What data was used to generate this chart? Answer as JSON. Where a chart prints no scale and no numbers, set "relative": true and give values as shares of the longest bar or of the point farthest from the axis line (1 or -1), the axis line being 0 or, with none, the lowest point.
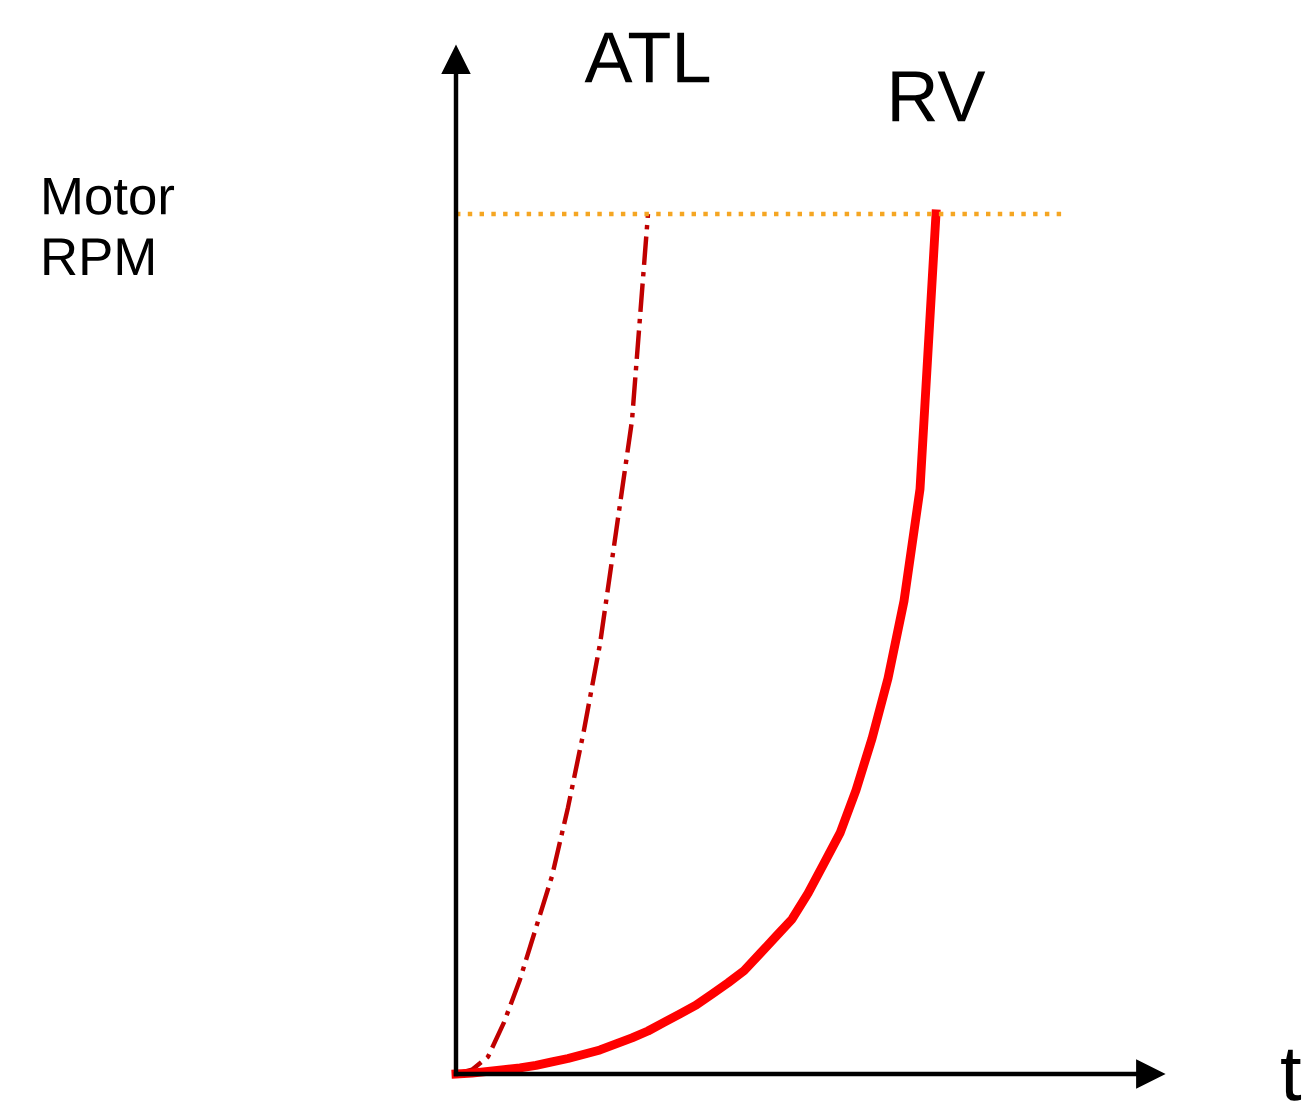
{
  "chart_data": {
    "type": "line",
    "relative": true,
    "xlabel": "t",
    "annotations": [
      "Motor\nRPM"
    ],
    "categories": [
      null,
      null,
      null,
      null,
      null,
      null,
      null,
      null,
      null,
      null,
      null,
      null,
      null,
      null,
      null,
      null,
      null,
      null,
      null,
      null,
      null,
      null,
      null,
      null,
      null,
      null,
      null,
      null,
      null,
      null,
      null,
      null,
      null,
      null,
      null,
      null,
      null,
      null,
      null
    ],
    "series": [
      {
        "name": "ATL",
        "color": "#c00000",
        "line_style": "dashdot",
        "values": [
          0,
          0.005,
          0.02,
          0.06,
          0.11,
          0.17,
          0.23,
          0.31,
          0.4,
          0.5,
          0.63,
          0.76,
          1.0,
          null,
          null,
          null,
          null,
          null,
          null,
          null,
          null,
          null,
          null,
          null,
          null,
          null,
          null,
          null,
          null,
          null,
          null,
          null,
          null,
          null,
          null,
          null,
          null,
          null,
          null
        ]
      },
      {
        "name": "RV",
        "color": "#ff0000",
        "line_style": "solid",
        "values": [
          0,
          0.001,
          0.003,
          0.005,
          0.007,
          0.01,
          0.014,
          0.018,
          0.023,
          0.028,
          0.035,
          0.042,
          0.05,
          0.06,
          0.07,
          0.08,
          0.093,
          0.106,
          0.12,
          0.14,
          0.16,
          0.18,
          0.21,
          0.245,
          0.28,
          0.33,
          0.39,
          0.46,
          0.55,
          0.68,
          1.0,
          null,
          null,
          null,
          null,
          null,
          null,
          null,
          null
        ]
      }
    ],
    "ref_lines": [
      {
        "axis": "y",
        "value": 1.0,
        "color": "#f5a623",
        "line_style": "dotted"
      }
    ],
    "legend": false,
    "marker": "none"
  }
}
